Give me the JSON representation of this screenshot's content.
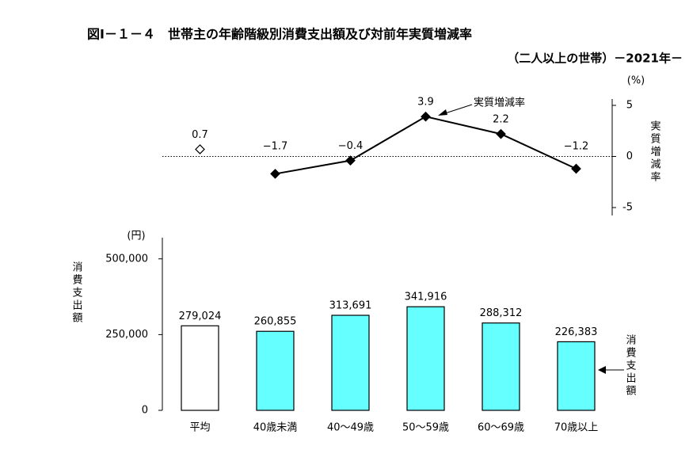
{
  "title": "図Ⅰ－１－４　世帯主の年齢階級別消費支出額及び対前年実質増減率",
  "subtitle": "（二人以上の世帯）－2021年－",
  "chart_data": [
    {
      "type": "line",
      "unit": "(%)",
      "ylabel": "実質増減率",
      "annotation": "実質増減率",
      "ylim": [
        -5,
        5
      ],
      "yticks": [
        -5,
        0,
        5
      ],
      "series": [
        {
          "color": "#000000",
          "marker": "open-diamond",
          "values": [
            0.7,
            null,
            null,
            null,
            null,
            null
          ],
          "value_labels": [
            "0.7",
            null,
            null,
            null,
            null,
            null
          ]
        },
        {
          "color": "#000000",
          "marker": "diamond",
          "values": [
            null,
            -1.7,
            -0.4,
            3.9,
            2.2,
            -1.2
          ],
          "value_labels": [
            null,
            "−1.7",
            "−0.4",
            "3.9",
            "2.2",
            "−1.2"
          ]
        }
      ]
    },
    {
      "type": "bar",
      "unit": "(円)",
      "ylabel": "消費支出額",
      "annotation": "消費支出額",
      "categories": [
        "平均",
        "40歳未満",
        "40～49歳",
        "50～59歳",
        "60～69歳",
        "70歳以上"
      ],
      "values": [
        279024,
        260855,
        313691,
        341916,
        288312,
        226383
      ],
      "value_labels": [
        "279,024",
        "260,855",
        "313,691",
        "341,916",
        "288,312",
        "226,383"
      ],
      "colors": [
        "#ffffff",
        "#66ffff",
        "#66ffff",
        "#66ffff",
        "#66ffff",
        "#66ffff"
      ],
      "ylim": [
        0,
        570000
      ],
      "yticks": [
        0,
        {
          "value": 250000,
          "label": "250,000"
        },
        {
          "value": 500000,
          "label": "500,000"
        }
      ]
    }
  ]
}
